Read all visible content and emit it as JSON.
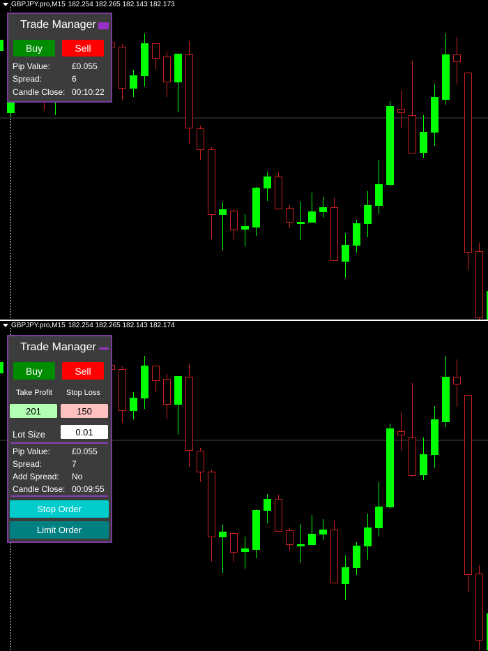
{
  "top_window": {
    "header": {
      "symbol": "GBPJPY.pro,M15",
      "ohlc": "182.254 182.265 182.143 182.173"
    },
    "panel": {
      "title": "Trade Manager",
      "minimize_icon": "square-icon",
      "buy_label": "Buy",
      "sell_label": "Sell",
      "rows": [
        {
          "label": "Pip Value:",
          "value": "£0.055"
        },
        {
          "label": "Spread:",
          "value": "6"
        },
        {
          "label": "Candle Close:",
          "value": "00:10:22"
        }
      ]
    }
  },
  "bottom_window": {
    "header": {
      "symbol": "GBPJPY.pro,M15",
      "ohlc": "182.254 182.265 182.143 182.174"
    },
    "panel": {
      "title": "Trade Manager",
      "minimize_icon": "dash-icon",
      "buy_label": "Buy",
      "sell_label": "Sell",
      "take_profit_label": "Take Profit",
      "stop_loss_label": "Stop Loss",
      "take_profit_value": "201",
      "stop_loss_value": "150",
      "lot_size_label": "Lot Size",
      "lot_size_value": "0.01",
      "rows": [
        {
          "label": "Pip Value:",
          "value": "£0.055"
        },
        {
          "label": "Spread:",
          "value": "7"
        },
        {
          "label": "Add Spread:",
          "value": "No"
        },
        {
          "label": "Candle Close:",
          "value": "00:09:55"
        }
      ],
      "stop_order_label": "Stop Order",
      "limit_order_label": "Limit Order"
    }
  },
  "colors": {
    "bull": "#00ff00",
    "bear": "#cc2020",
    "panel_border": "#7a3aa0",
    "buy": "#008c00",
    "sell": "#ff0000",
    "take_profit_bg": "#b3ffb3",
    "stop_loss_bg": "#ffc0c0",
    "stop_order_bg": "#00cccc",
    "limit_order_bg": "#008080"
  },
  "chart_data": {
    "type": "candlestick",
    "ylim": [
      180.65,
      183.0
    ],
    "horizontal_line": 182.155,
    "candles": [
      [
        182.635,
        182.75,
        182.6,
        182.715
      ],
      [
        182.19,
        182.35,
        182.16,
        182.31
      ],
      [
        182.325,
        182.5,
        182.3,
        182.45
      ],
      [
        182.5,
        182.525,
        182.3,
        182.375
      ],
      [
        182.45,
        182.5,
        182.21,
        182.3
      ],
      [
        182.3,
        182.55,
        182.175,
        182.5
      ],
      [
        182.55,
        182.6,
        182.325,
        182.4
      ],
      [
        182.45,
        182.65,
        182.375,
        182.6
      ],
      [
        182.65,
        182.7,
        182.4,
        182.5
      ],
      [
        182.55,
        182.75,
        182.45,
        182.7
      ],
      [
        182.695,
        182.71,
        182.6,
        182.665
      ],
      [
        182.665,
        182.685,
        182.28,
        182.37
      ],
      [
        182.365,
        182.5,
        182.305,
        182.46
      ],
      [
        182.455,
        182.76,
        182.38,
        182.69
      ],
      [
        182.69,
        182.69,
        182.505,
        182.585
      ],
      [
        182.595,
        182.63,
        182.305,
        182.415
      ],
      [
        182.41,
        182.615,
        182.195,
        182.615
      ],
      [
        182.61,
        182.705,
        181.965,
        182.085
      ],
      [
        182.08,
        182.1,
        181.855,
        181.93
      ],
      [
        181.93,
        181.945,
        181.285,
        181.465
      ],
      [
        181.46,
        181.55,
        181.205,
        181.5
      ],
      [
        181.49,
        181.5,
        181.285,
        181.355
      ],
      [
        181.355,
        181.465,
        181.235,
        181.38
      ],
      [
        181.37,
        181.66,
        181.31,
        181.655
      ],
      [
        181.65,
        181.77,
        181.56,
        181.735
      ],
      [
        181.735,
        181.765,
        181.505,
        181.505
      ],
      [
        181.51,
        181.53,
        181.365,
        181.41
      ],
      [
        181.395,
        181.555,
        181.28,
        181.41
      ],
      [
        181.405,
        181.62,
        181.405,
        181.485
      ],
      [
        181.48,
        181.59,
        181.44,
        181.515
      ],
      [
        181.515,
        181.58,
        181.135,
        181.135
      ],
      [
        181.125,
        181.33,
        181.01,
        181.245
      ],
      [
        181.24,
        181.425,
        181.19,
        181.4
      ],
      [
        181.395,
        181.63,
        181.3,
        181.53
      ],
      [
        181.525,
        181.855,
        181.465,
        181.68
      ],
      [
        181.675,
        182.275,
        181.665,
        182.24
      ],
      [
        182.22,
        182.355,
        182.08,
        182.195
      ],
      [
        182.175,
        182.565,
        181.9,
        181.905
      ],
      [
        181.905,
        182.175,
        181.87,
        182.055
      ],
      [
        182.05,
        182.4,
        181.955,
        182.305
      ],
      [
        182.285,
        182.76,
        182.25,
        182.61
      ],
      [
        182.61,
        182.735,
        182.395,
        182.56
      ],
      [
        182.48,
        182.48,
        181.065,
        181.195
      ],
      [
        181.2,
        181.26,
        180.65,
        180.725
      ],
      [
        180.65,
        180.915,
        180.65,
        180.915
      ]
    ]
  }
}
